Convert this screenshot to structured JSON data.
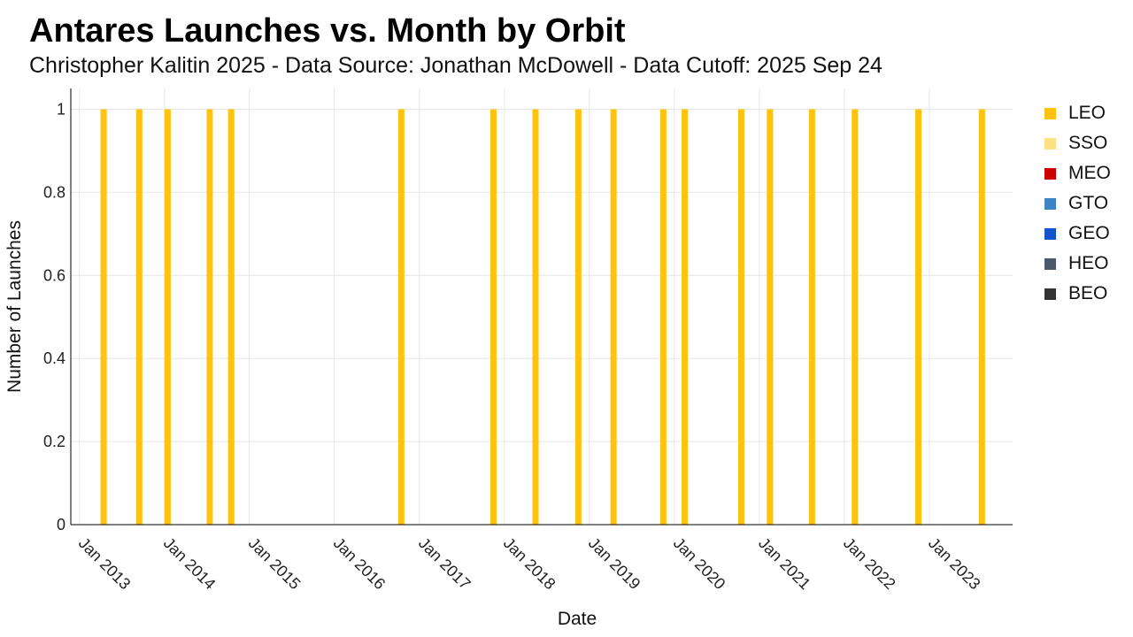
{
  "header": {
    "title": "Antares Launches vs. Month by Orbit",
    "subtitle": "Christopher Kalitin 2025 - Data Source: Jonathan McDowell - Data Cutoff: 2025 Sep 24"
  },
  "chart_data": {
    "type": "bar",
    "title": "Antares Launches vs. Month by Orbit",
    "subtitle": "Christopher Kalitin 2025 - Data Source: Jonathan McDowell - Data Cutoff: 2025 Sep 24",
    "xlabel": "Date",
    "ylabel": "Number of Launches",
    "ylim": [
      0,
      1.05
    ],
    "xlim": [
      "2012-11-25",
      "2023-12-25"
    ],
    "grid": true,
    "legend_position": "right",
    "y_ticks": [
      {
        "value": 0,
        "label": "0"
      },
      {
        "value": 0.2,
        "label": "0.2"
      },
      {
        "value": 0.4,
        "label": "0.4"
      },
      {
        "value": 0.6,
        "label": "0.6"
      },
      {
        "value": 0.8,
        "label": "0.8"
      },
      {
        "value": 1,
        "label": "1"
      }
    ],
    "x_ticks": [
      {
        "date": "2013-01-01",
        "label": "Jan 2013"
      },
      {
        "date": "2014-01-01",
        "label": "Jan 2014"
      },
      {
        "date": "2015-01-01",
        "label": "Jan 2015"
      },
      {
        "date": "2016-01-01",
        "label": "Jan 2016"
      },
      {
        "date": "2017-01-01",
        "label": "Jan 2017"
      },
      {
        "date": "2018-01-01",
        "label": "Jan 2018"
      },
      {
        "date": "2019-01-01",
        "label": "Jan 2019"
      },
      {
        "date": "2020-01-01",
        "label": "Jan 2020"
      },
      {
        "date": "2021-01-01",
        "label": "Jan 2021"
      },
      {
        "date": "2022-01-01",
        "label": "Jan 2022"
      },
      {
        "date": "2023-01-01",
        "label": "Jan 2023"
      }
    ],
    "series": [
      {
        "name": "LEO",
        "color": "#FFC20E",
        "months": [
          "2013-04",
          "2013-09",
          "2014-01",
          "2014-07",
          "2014-10",
          "2016-10",
          "2017-11",
          "2018-05",
          "2018-11",
          "2019-04",
          "2019-11",
          "2020-02",
          "2020-10",
          "2021-02",
          "2021-08",
          "2022-02",
          "2022-11",
          "2023-08"
        ],
        "value": 1
      },
      {
        "name": "SSO",
        "color": "#FFE082",
        "months": [],
        "value": 1
      },
      {
        "name": "MEO",
        "color": "#CC0000",
        "months": [],
        "value": 1
      },
      {
        "name": "GTO",
        "color": "#3D85C6",
        "months": [],
        "value": 1
      },
      {
        "name": "GEO",
        "color": "#1155CC",
        "months": [],
        "value": 1
      },
      {
        "name": "HEO",
        "color": "#4A5A6A",
        "months": [],
        "value": 1
      },
      {
        "name": "BEO",
        "color": "#333333",
        "months": [],
        "value": 1
      }
    ]
  }
}
